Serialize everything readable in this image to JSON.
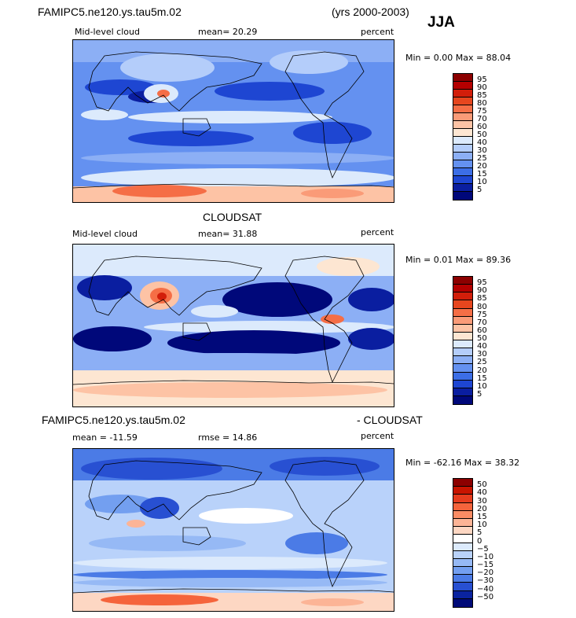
{
  "header": {
    "case_name": "FAMIPC5.ne120.ys.tau5m.02",
    "years": "(yrs 2000-2003)",
    "season": "JJA"
  },
  "panel1": {
    "variable": "Mid-level cloud",
    "mean_text": "mean=  20.29",
    "units": "percent",
    "minmax": "Min =   0.00 Max =  88.04",
    "levels": [
      "95",
      "90",
      "85",
      "80",
      "75",
      "70",
      "60",
      "50",
      "40",
      "30",
      "25",
      "20",
      "15",
      "10",
      "5"
    ]
  },
  "panel2": {
    "title": "CLOUDSAT",
    "variable": "Mid-level cloud",
    "mean_text": "mean=  31.88",
    "units": "percent",
    "minmax": "Min =   0.01 Max =  89.36",
    "levels": [
      "95",
      "90",
      "85",
      "80",
      "75",
      "70",
      "60",
      "50",
      "40",
      "30",
      "25",
      "20",
      "15",
      "10",
      "5"
    ]
  },
  "panel3": {
    "title_left": "FAMIPC5.ne120.ys.tau5m.02",
    "title_right": "- CLOUDSAT",
    "mean_text": "mean = -11.59",
    "rmse_text": "rmse =  14.86",
    "units": "percent",
    "minmax": "Min = -62.16 Max =  38.32",
    "levels": [
      "50",
      "40",
      "30",
      "20",
      "15",
      "10",
      "5",
      "0",
      "−5",
      "−10",
      "−15",
      "−20",
      "−30",
      "−40",
      "−50"
    ]
  },
  "colors": {
    "abs_scale": [
      "#8c0000",
      "#b40000",
      "#d21e0a",
      "#e6461e",
      "#f56e46",
      "#fa9b78",
      "#fdc3a5",
      "#fde6d2",
      "#dceafc",
      "#b4cdfa",
      "#8caff5",
      "#6491f0",
      "#3c6ee6",
      "#1e46d2",
      "#0a1ea0",
      "#00087a"
    ],
    "diff_scale": [
      "#8c0000",
      "#c81400",
      "#e63c1e",
      "#f5643c",
      "#fa8c64",
      "#fcb496",
      "#fdd7c3",
      "#ffffff",
      "#dceafc",
      "#b9d2fa",
      "#96b9f5",
      "#739ff0",
      "#4b7be6",
      "#2850d2",
      "#0a23a0",
      "#000a78"
    ]
  }
}
